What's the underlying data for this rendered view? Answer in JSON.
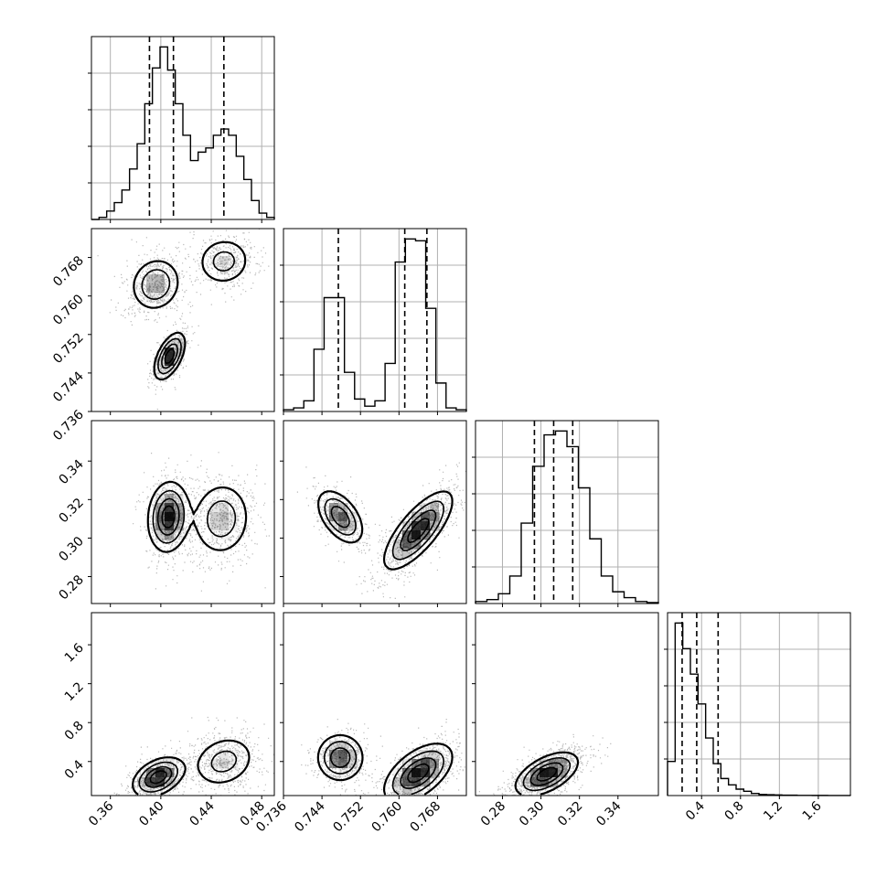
{
  "chart_data": {
    "type": "corner",
    "grid": true,
    "parameters": [
      {
        "range": [
          0.345,
          0.49
        ],
        "ticks": [
          0.36,
          0.4,
          0.44,
          0.48
        ],
        "tick_labels": [
          "0.36",
          "0.40",
          "0.44",
          "0.48"
        ],
        "quantiles": [
          0.391,
          0.41,
          0.45
        ],
        "hist_density": [
          0,
          0.01,
          0.04,
          0.08,
          0.14,
          0.24,
          0.36,
          0.55,
          0.72,
          0.82,
          0.71,
          0.55,
          0.4,
          0.28,
          0.32,
          0.34,
          0.4,
          0.43,
          0.4,
          0.3,
          0.19,
          0.09,
          0.03,
          0.01
        ]
      },
      {
        "range": [
          0.736,
          0.774
        ],
        "ticks": [
          0.736,
          0.744,
          0.752,
          0.76,
          0.768
        ],
        "tick_labels": [
          "0.736",
          "0.744",
          "0.752",
          "0.760",
          "0.768"
        ],
        "quantiles": [
          0.7474,
          0.7612,
          0.7658
        ],
        "hist_density": [
          0.01,
          0.02,
          0.06,
          0.35,
          0.64,
          0.64,
          0.22,
          0.07,
          0.03,
          0.06,
          0.27,
          0.84,
          0.97,
          0.96,
          0.58,
          0.16,
          0.02,
          0.01
        ]
      },
      {
        "range": [
          0.266,
          0.361
        ],
        "ticks": [
          0.28,
          0.3,
          0.32,
          0.34
        ],
        "tick_labels": [
          "0.28",
          "0.30",
          "0.32",
          "0.34"
        ],
        "quantiles": [
          0.2966,
          0.3066,
          0.3165
        ],
        "hist_density": [
          0.01,
          0.02,
          0.05,
          0.14,
          0.41,
          0.7,
          0.86,
          0.88,
          0.8,
          0.59,
          0.33,
          0.14,
          0.06,
          0.03,
          0.01,
          0.005
        ]
      },
      {
        "range": [
          0.05,
          1.93
        ],
        "ticks": [
          0.4,
          0.8,
          1.2,
          1.6
        ],
        "tick_labels": [
          "0.4",
          "0.8",
          "1.2",
          "1.6"
        ],
        "quantiles": [
          0.2,
          0.35,
          0.57
        ],
        "hist_density": [
          0.16,
          0.81,
          0.69,
          0.57,
          0.43,
          0.27,
          0.15,
          0.08,
          0.05,
          0.03,
          0.02,
          0.01,
          0.005,
          0.004,
          0.003,
          0.002,
          0.002,
          0.001,
          0.001,
          0.0005,
          0.0005,
          0.0003,
          0.0002,
          0.0001
        ]
      }
    ],
    "joint": {
      "1-0": [
        {
          "mean": [
            0.396,
            0.7624
          ],
          "sd": [
            0.01,
            0.0028
          ],
          "rho": 0.1,
          "w": 0.4
        },
        {
          "mean": [
            0.45,
            0.7672
          ],
          "sd": [
            0.011,
            0.0026
          ],
          "rho": 0.05,
          "w": 0.3
        },
        {
          "mean": [
            0.407,
            0.7475
          ],
          "sd": [
            0.006,
            0.0024
          ],
          "rho": 0.55,
          "w": 0.3
        }
      ],
      "2-0": [
        {
          "mean": [
            0.406,
            0.311
          ],
          "sd": [
            0.008,
            0.009
          ],
          "rho": 0.1,
          "w": 0.55
        },
        {
          "mean": [
            0.448,
            0.31
          ],
          "sd": [
            0.012,
            0.01
          ],
          "rho": 0.05,
          "w": 0.45
        }
      ],
      "2-1": [
        {
          "mean": [
            0.7478,
            0.311
          ],
          "sd": [
            0.0024,
            0.007
          ],
          "rho": -0.5,
          "w": 0.33
        },
        {
          "mean": [
            0.764,
            0.304
          ],
          "sd": [
            0.0035,
            0.01
          ],
          "rho": 0.75,
          "w": 0.67
        }
      ],
      "3-0": [
        {
          "mean": [
            0.398,
            0.24
          ],
          "sd": [
            0.01,
            0.1
          ],
          "rho": 0.4,
          "w": 0.55
        },
        {
          "mean": [
            0.45,
            0.4
          ],
          "sd": [
            0.013,
            0.14
          ],
          "rho": 0.2,
          "w": 0.45
        }
      ],
      "3-1": [
        {
          "mean": [
            0.7478,
            0.44
          ],
          "sd": [
            0.0024,
            0.12
          ],
          "rho": 0.0,
          "w": 0.35
        },
        {
          "mean": [
            0.764,
            0.28
          ],
          "sd": [
            0.0035,
            0.15
          ],
          "rho": 0.55,
          "w": 0.65
        }
      ],
      "3-2": [
        {
          "mean": [
            0.303,
            0.27
          ],
          "sd": [
            0.008,
            0.11
          ],
          "rho": 0.55,
          "w": 1.0
        }
      ]
    }
  }
}
